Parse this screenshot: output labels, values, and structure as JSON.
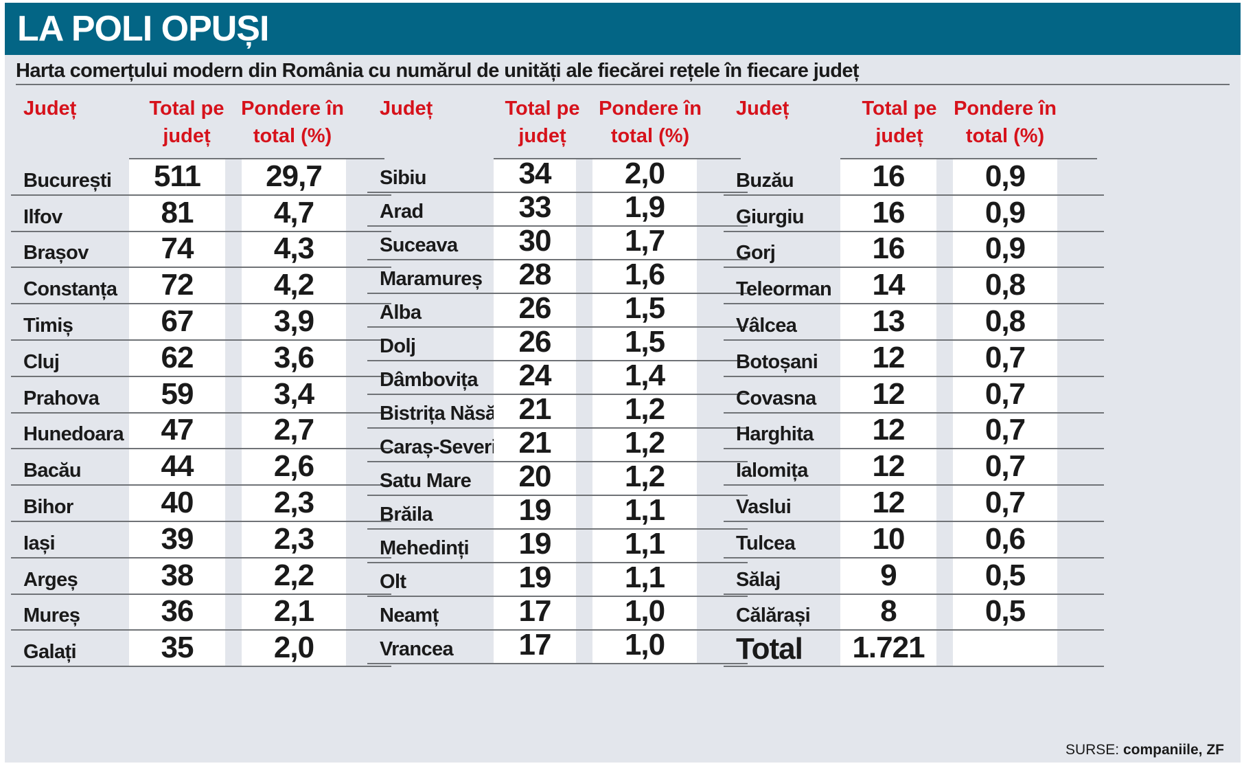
{
  "title": "LA POLI OPUȘI",
  "subtitle": "Harta comerțului modern din România cu numărul de unități ale fiecărei rețele în fiecare județ",
  "headers": {
    "county": "Județ",
    "total": "Total pe județ",
    "share": "Pondere în total (%)"
  },
  "columns": [
    {
      "rows": [
        {
          "county": "București",
          "total": "511",
          "share": "29,7"
        },
        {
          "county": "Ilfov",
          "total": "81",
          "share": "4,7"
        },
        {
          "county": "Brașov",
          "total": "74",
          "share": "4,3"
        },
        {
          "county": "Constanța",
          "total": "72",
          "share": "4,2"
        },
        {
          "county": "Timiș",
          "total": "67",
          "share": "3,9"
        },
        {
          "county": "Cluj",
          "total": "62",
          "share": "3,6"
        },
        {
          "county": "Prahova",
          "total": "59",
          "share": "3,4"
        },
        {
          "county": "Hunedoara",
          "total": "47",
          "share": "2,7"
        },
        {
          "county": "Bacău",
          "total": "44",
          "share": "2,6"
        },
        {
          "county": "Bihor",
          "total": "40",
          "share": "2,3"
        },
        {
          "county": "Iași",
          "total": "39",
          "share": "2,3"
        },
        {
          "county": "Argeș",
          "total": "38",
          "share": "2,2"
        },
        {
          "county": "Mureș",
          "total": "36",
          "share": "2,1"
        },
        {
          "county": "Galați",
          "total": "35",
          "share": "2,0"
        }
      ]
    },
    {
      "rows": [
        {
          "county": "Sibiu",
          "total": "34",
          "share": "2,0"
        },
        {
          "county": "Arad",
          "total": "33",
          "share": "1,9"
        },
        {
          "county": "Suceava",
          "total": "30",
          "share": "1,7"
        },
        {
          "county": "Maramureș",
          "total": "28",
          "share": "1,6"
        },
        {
          "county": "Alba",
          "total": "26",
          "share": "1,5"
        },
        {
          "county": "Dolj",
          "total": "26",
          "share": "1,5"
        },
        {
          "county": "Dâmbovița",
          "total": "24",
          "share": "1,4"
        },
        {
          "county": "Bistrița Năsăud",
          "total": "21",
          "share": "1,2"
        },
        {
          "county": "Caraș-Severin",
          "total": "21",
          "share": "1,2"
        },
        {
          "county": "Satu Mare",
          "total": "20",
          "share": "1,2"
        },
        {
          "county": "Brăila",
          "total": "19",
          "share": "1,1"
        },
        {
          "county": "Mehedinți",
          "total": "19",
          "share": "1,1"
        },
        {
          "county": "Olt",
          "total": "19",
          "share": "1,1"
        },
        {
          "county": "Neamț",
          "total": "17",
          "share": "1,0"
        },
        {
          "county": "Vrancea",
          "total": "17",
          "share": "1,0"
        }
      ]
    },
    {
      "rows": [
        {
          "county": "Buzău",
          "total": "16",
          "share": "0,9"
        },
        {
          "county": "Giurgiu",
          "total": "16",
          "share": "0,9"
        },
        {
          "county": "Gorj",
          "total": "16",
          "share": "0,9"
        },
        {
          "county": "Teleorman",
          "total": "14",
          "share": "0,8"
        },
        {
          "county": "Vâlcea",
          "total": "13",
          "share": "0,8"
        },
        {
          "county": "Botoșani",
          "total": "12",
          "share": "0,7"
        },
        {
          "county": "Covasna",
          "total": "12",
          "share": "0,7"
        },
        {
          "county": "Harghita",
          "total": "12",
          "share": "0,7"
        },
        {
          "county": "Ialomița",
          "total": "12",
          "share": "0,7"
        },
        {
          "county": "Vaslui",
          "total": "12",
          "share": "0,7"
        },
        {
          "county": "Tulcea",
          "total": "10",
          "share": "0,6"
        },
        {
          "county": "Sălaj",
          "total": "9",
          "share": "0,5"
        },
        {
          "county": "Călărași",
          "total": "8",
          "share": "0,5"
        },
        {
          "county": "Total",
          "total": "1.721",
          "share": ""
        }
      ]
    }
  ],
  "source": {
    "label": "SURSE:",
    "value": "companiile, ZF"
  },
  "colors": {
    "header_bg": "#036585",
    "accent": "#d6121b",
    "panel_bg": "#e3e6ec",
    "cell_bg": "#ffffff"
  }
}
